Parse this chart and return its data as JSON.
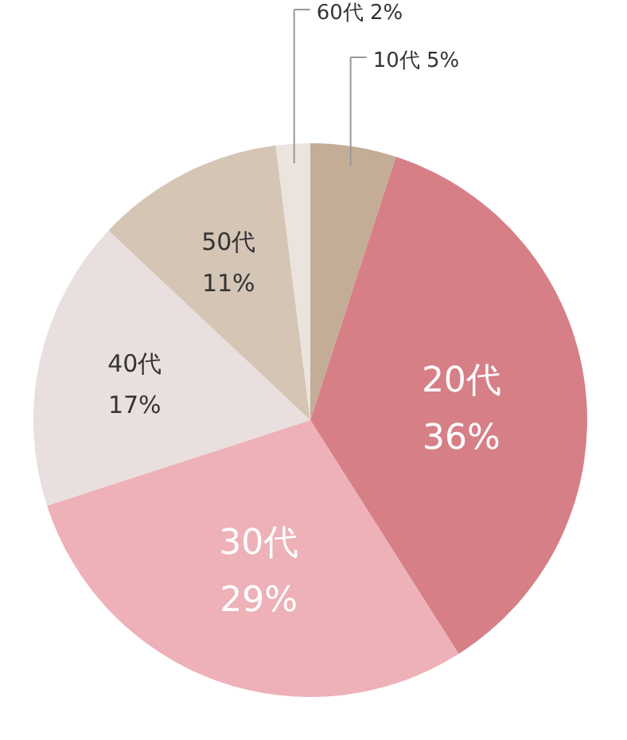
{
  "chart_data": {
    "type": "pie",
    "categories": [
      "10代",
      "20代",
      "30代",
      "40代",
      "50代",
      "60代"
    ],
    "values": [
      5,
      36,
      29,
      17,
      11,
      2
    ],
    "colors": [
      "#c4ad96",
      "#d67f87",
      "#edb1b7",
      "#e9dfde",
      "#d5c5b5",
      "#ebe3dd"
    ],
    "value_labels": [
      "5%",
      "36%",
      "29%",
      "17%",
      "11%",
      "2%"
    ]
  }
}
